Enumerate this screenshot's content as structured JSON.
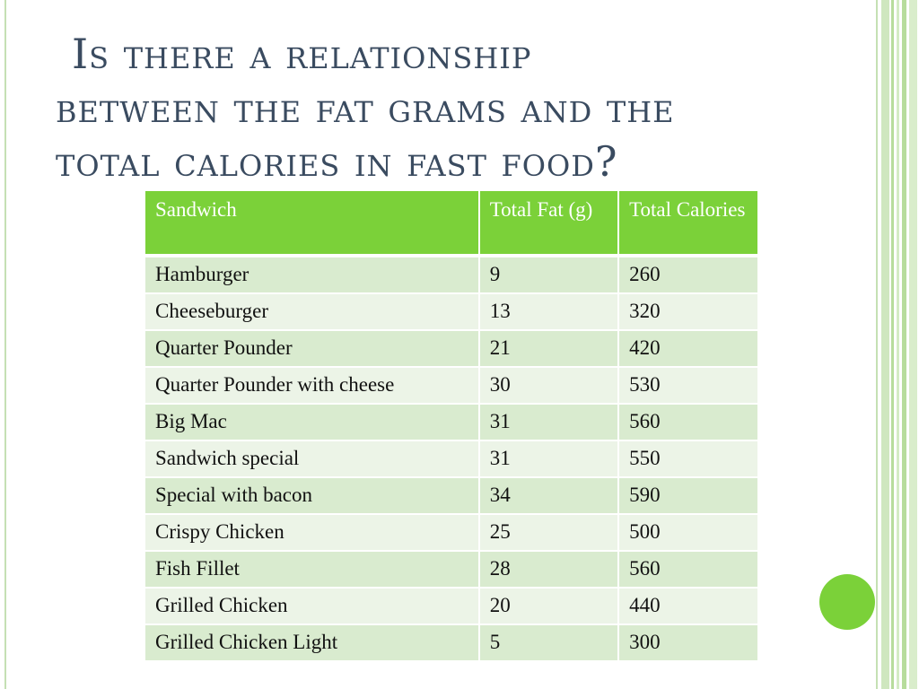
{
  "slide": {
    "title_line1": "Is there a relationship",
    "title_line2": "between the fat grams and the",
    "title_line3": "total calories in fast food?"
  },
  "table": {
    "headers": {
      "sandwich": "Sandwich",
      "fat": "Total Fat (g)",
      "calories": "Total Calories"
    },
    "rows": [
      {
        "sandwich": "Hamburger",
        "fat": "9",
        "calories": "260"
      },
      {
        "sandwich": "Cheeseburger",
        "fat": "13",
        "calories": "320"
      },
      {
        "sandwich": "Quarter Pounder",
        "fat": "21",
        "calories": "420"
      },
      {
        "sandwich": "Quarter Pounder with cheese",
        "fat": "30",
        "calories": "530"
      },
      {
        "sandwich": "Big Mac",
        "fat": "31",
        "calories": "560"
      },
      {
        "sandwich": "Sandwich special",
        "fat": "31",
        "calories": "550"
      },
      {
        "sandwich": "Special with bacon",
        "fat": "34",
        "calories": "590"
      },
      {
        "sandwich": "Crispy Chicken",
        "fat": "25",
        "calories": "500"
      },
      {
        "sandwich": "Fish Fillet",
        "fat": "28",
        "calories": "560"
      },
      {
        "sandwich": "Grilled Chicken",
        "fat": "20",
        "calories": "440"
      },
      {
        "sandwich": "Grilled Chicken Light",
        "fat": "5",
        "calories": "300"
      }
    ]
  },
  "colors": {
    "accent_green": "#7bd139",
    "row_dark": "#d9ebcf",
    "row_light": "#ecf4e7",
    "title_text": "#3a4b60",
    "stripe_light": "#d4ebc4",
    "stripe_mid": "#b7dc9c"
  }
}
